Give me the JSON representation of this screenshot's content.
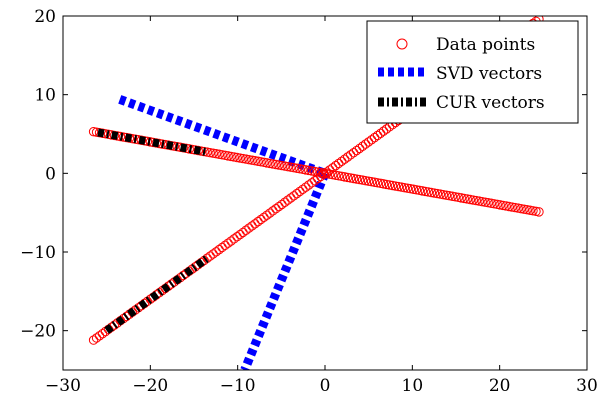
{
  "chart_data": {
    "type": "scatter",
    "xlim": [
      -30,
      30
    ],
    "ylim": [
      -25,
      20
    ],
    "x_ticks": [
      -30,
      -20,
      -10,
      0,
      10,
      20,
      30
    ],
    "y_ticks": [
      -20,
      -10,
      0,
      10,
      20
    ],
    "x_tick_labels": [
      "−30",
      "−20",
      "−10",
      "0",
      "10",
      "20",
      "30"
    ],
    "y_tick_labels": [
      "−20",
      "−10",
      "0",
      "10",
      "20"
    ],
    "grid": false,
    "legend_position": "top-right",
    "series": [
      {
        "name": "Data points",
        "kind": "scatter",
        "color": "#ff0000",
        "marker": "open-circle",
        "lines": [
          {
            "slope": 0.8,
            "x_min": -26.5,
            "x_max": 24.5,
            "count": 150
          },
          {
            "slope": -0.2,
            "x_min": -26.5,
            "x_max": 24.5,
            "count": 150
          }
        ]
      },
      {
        "name": "SVD vectors",
        "kind": "dashed-line",
        "color": "#0000ff",
        "segments": [
          {
            "x1": -23.5,
            "y1": 9.4,
            "x2": 0,
            "y2": 0
          },
          {
            "x1": 0,
            "y1": 0,
            "x2": -9.2,
            "y2": -25
          }
        ]
      },
      {
        "name": "CUR vectors",
        "kind": "dash-dot-line",
        "color": "#000000",
        "segments": [
          {
            "x1": -26,
            "y1": 5.2,
            "x2": -13.5,
            "y2": 2.7
          },
          {
            "x1": -25,
            "y1": -20,
            "x2": -13.5,
            "y2": -10.8
          }
        ]
      }
    ]
  }
}
